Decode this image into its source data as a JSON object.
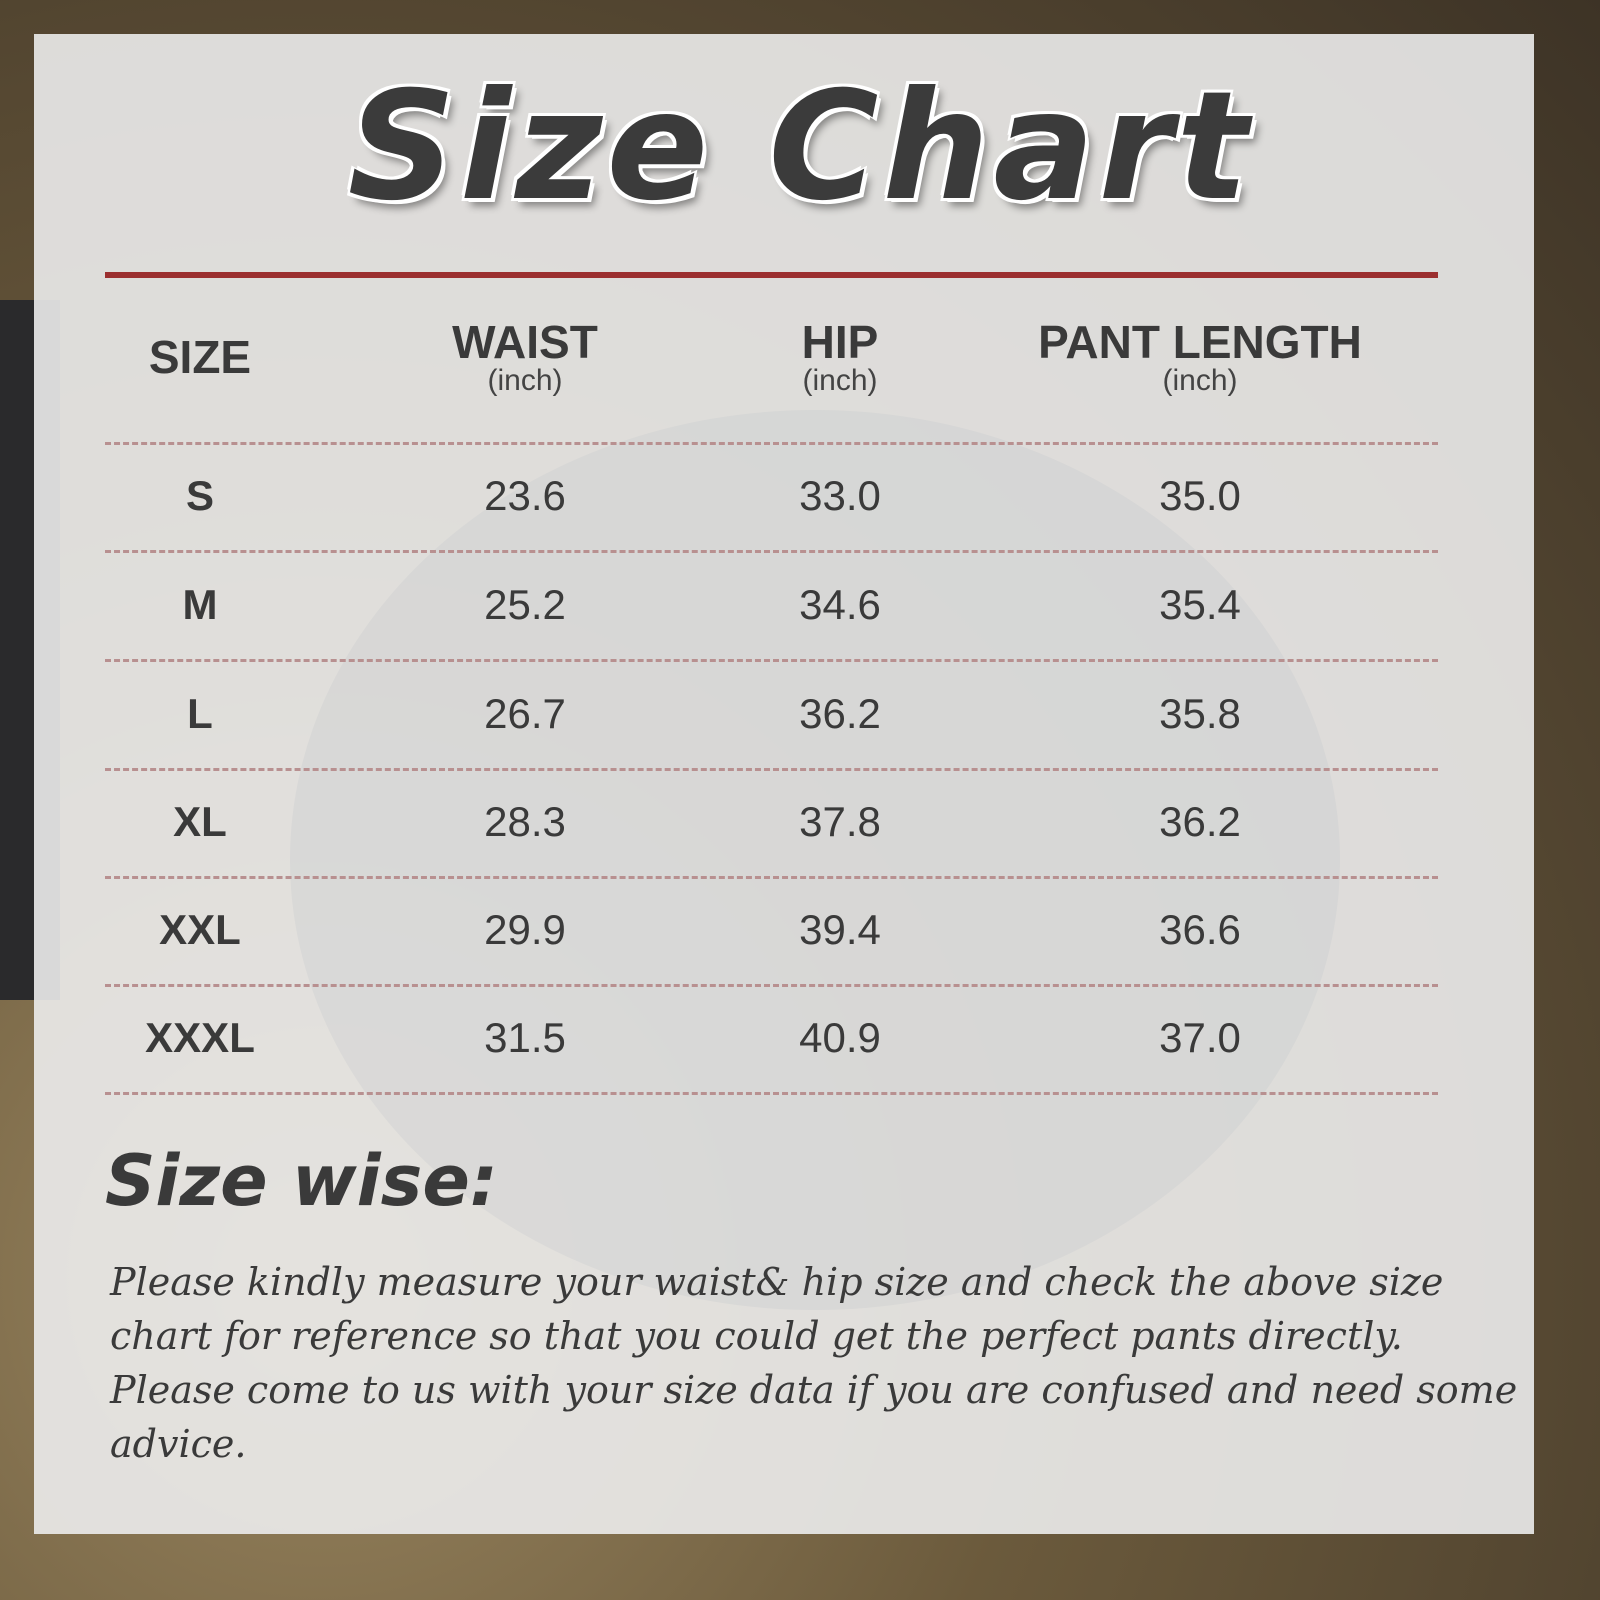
{
  "title": "Size Chart",
  "colors": {
    "accent_line": "#9b2f2f",
    "text": "#3a3a3a",
    "divider": "#b89090"
  },
  "table": {
    "headers": [
      {
        "label": "SIZE",
        "unit": ""
      },
      {
        "label": "WAIST",
        "unit": "(inch)"
      },
      {
        "label": "HIP",
        "unit": "(inch)"
      },
      {
        "label": "PANT LENGTH",
        "unit": "(inch)"
      }
    ],
    "rows": [
      [
        "S",
        "23.6",
        "33.0",
        "35.0"
      ],
      [
        "M",
        "25.2",
        "34.6",
        "35.4"
      ],
      [
        "L",
        "26.7",
        "36.2",
        "35.8"
      ],
      [
        "XL",
        "28.3",
        "37.8",
        "36.2"
      ],
      [
        "XXL",
        "29.9",
        "39.4",
        "36.6"
      ],
      [
        "XXXL",
        "31.5",
        "40.9",
        "37.0"
      ]
    ]
  },
  "size_wise": {
    "heading": "Size wise:",
    "text": "Please kindly measure your waist& hip size and check the above size chart for reference so that you could get the perfect pants directly. Please come to us with your size data if you are confused and need some advice."
  }
}
